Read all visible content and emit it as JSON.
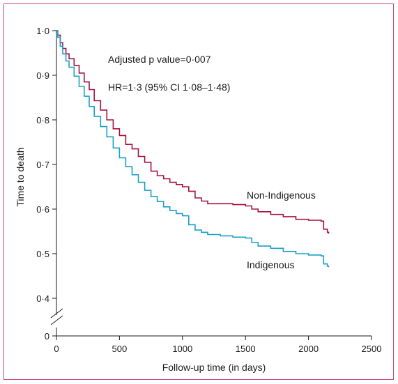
{
  "chart_data": {
    "type": "line",
    "step": true,
    "xlabel": "Follow-up time (in days)",
    "ylabel": "Time to death",
    "xlim": [
      0,
      2500
    ],
    "xticks": [
      0,
      500,
      1000,
      1500,
      2000,
      2500
    ],
    "xtick_labels": [
      "0",
      "500",
      "1000",
      "1500",
      "2000",
      "2500"
    ],
    "yticks": [
      1.0,
      0.9,
      0.8,
      0.7,
      0.6,
      0.5,
      0.4
    ],
    "ytick_labels": [
      "1·0",
      "0·9",
      "0·8",
      "0·7",
      "0·6",
      "0·5",
      "0·4"
    ],
    "y_origin_label": "0",
    "y_axis_break": true,
    "grid": false,
    "annotations": {
      "pvalue": "Adjusted p value=0·007",
      "hr": "HR=1·3 (95% CI 1·08–1·48)"
    },
    "series": [
      {
        "name": "Non-Indigenous",
        "color": "#a5123f",
        "x": [
          0,
          10,
          30,
          50,
          75,
          100,
          140,
          180,
          220,
          260,
          300,
          350,
          400,
          450,
          500,
          550,
          600,
          650,
          700,
          750,
          800,
          850,
          900,
          950,
          1000,
          1050,
          1100,
          1150,
          1200,
          1300,
          1400,
          1500,
          1550,
          1600,
          1700,
          1800,
          1900,
          2000,
          2100,
          2120,
          2150,
          2160
        ],
        "y": [
          1.0,
          0.99,
          0.973,
          0.96,
          0.948,
          0.937,
          0.922,
          0.905,
          0.885,
          0.868,
          0.843,
          0.822,
          0.8,
          0.78,
          0.765,
          0.745,
          0.735,
          0.718,
          0.705,
          0.685,
          0.675,
          0.668,
          0.66,
          0.655,
          0.65,
          0.64,
          0.625,
          0.618,
          0.612,
          0.612,
          0.61,
          0.607,
          0.6,
          0.594,
          0.588,
          0.583,
          0.577,
          0.575,
          0.573,
          0.555,
          0.548,
          0.545
        ]
      },
      {
        "name": "Indigenous",
        "color": "#1aa0c8",
        "x": [
          0,
          10,
          30,
          50,
          75,
          100,
          140,
          180,
          220,
          260,
          300,
          350,
          400,
          450,
          500,
          550,
          600,
          650,
          700,
          750,
          800,
          850,
          900,
          950,
          1000,
          1050,
          1100,
          1150,
          1200,
          1300,
          1400,
          1500,
          1550,
          1600,
          1700,
          1800,
          1900,
          2000,
          2100,
          2120,
          2150,
          2160
        ],
        "y": [
          1.0,
          0.985,
          0.965,
          0.948,
          0.932,
          0.918,
          0.898,
          0.875,
          0.853,
          0.83,
          0.808,
          0.785,
          0.762,
          0.737,
          0.715,
          0.695,
          0.677,
          0.66,
          0.642,
          0.628,
          0.617,
          0.605,
          0.597,
          0.59,
          0.585,
          0.565,
          0.553,
          0.548,
          0.543,
          0.54,
          0.537,
          0.535,
          0.525,
          0.517,
          0.512,
          0.505,
          0.5,
          0.497,
          0.495,
          0.477,
          0.472,
          0.47
        ]
      }
    ]
  }
}
